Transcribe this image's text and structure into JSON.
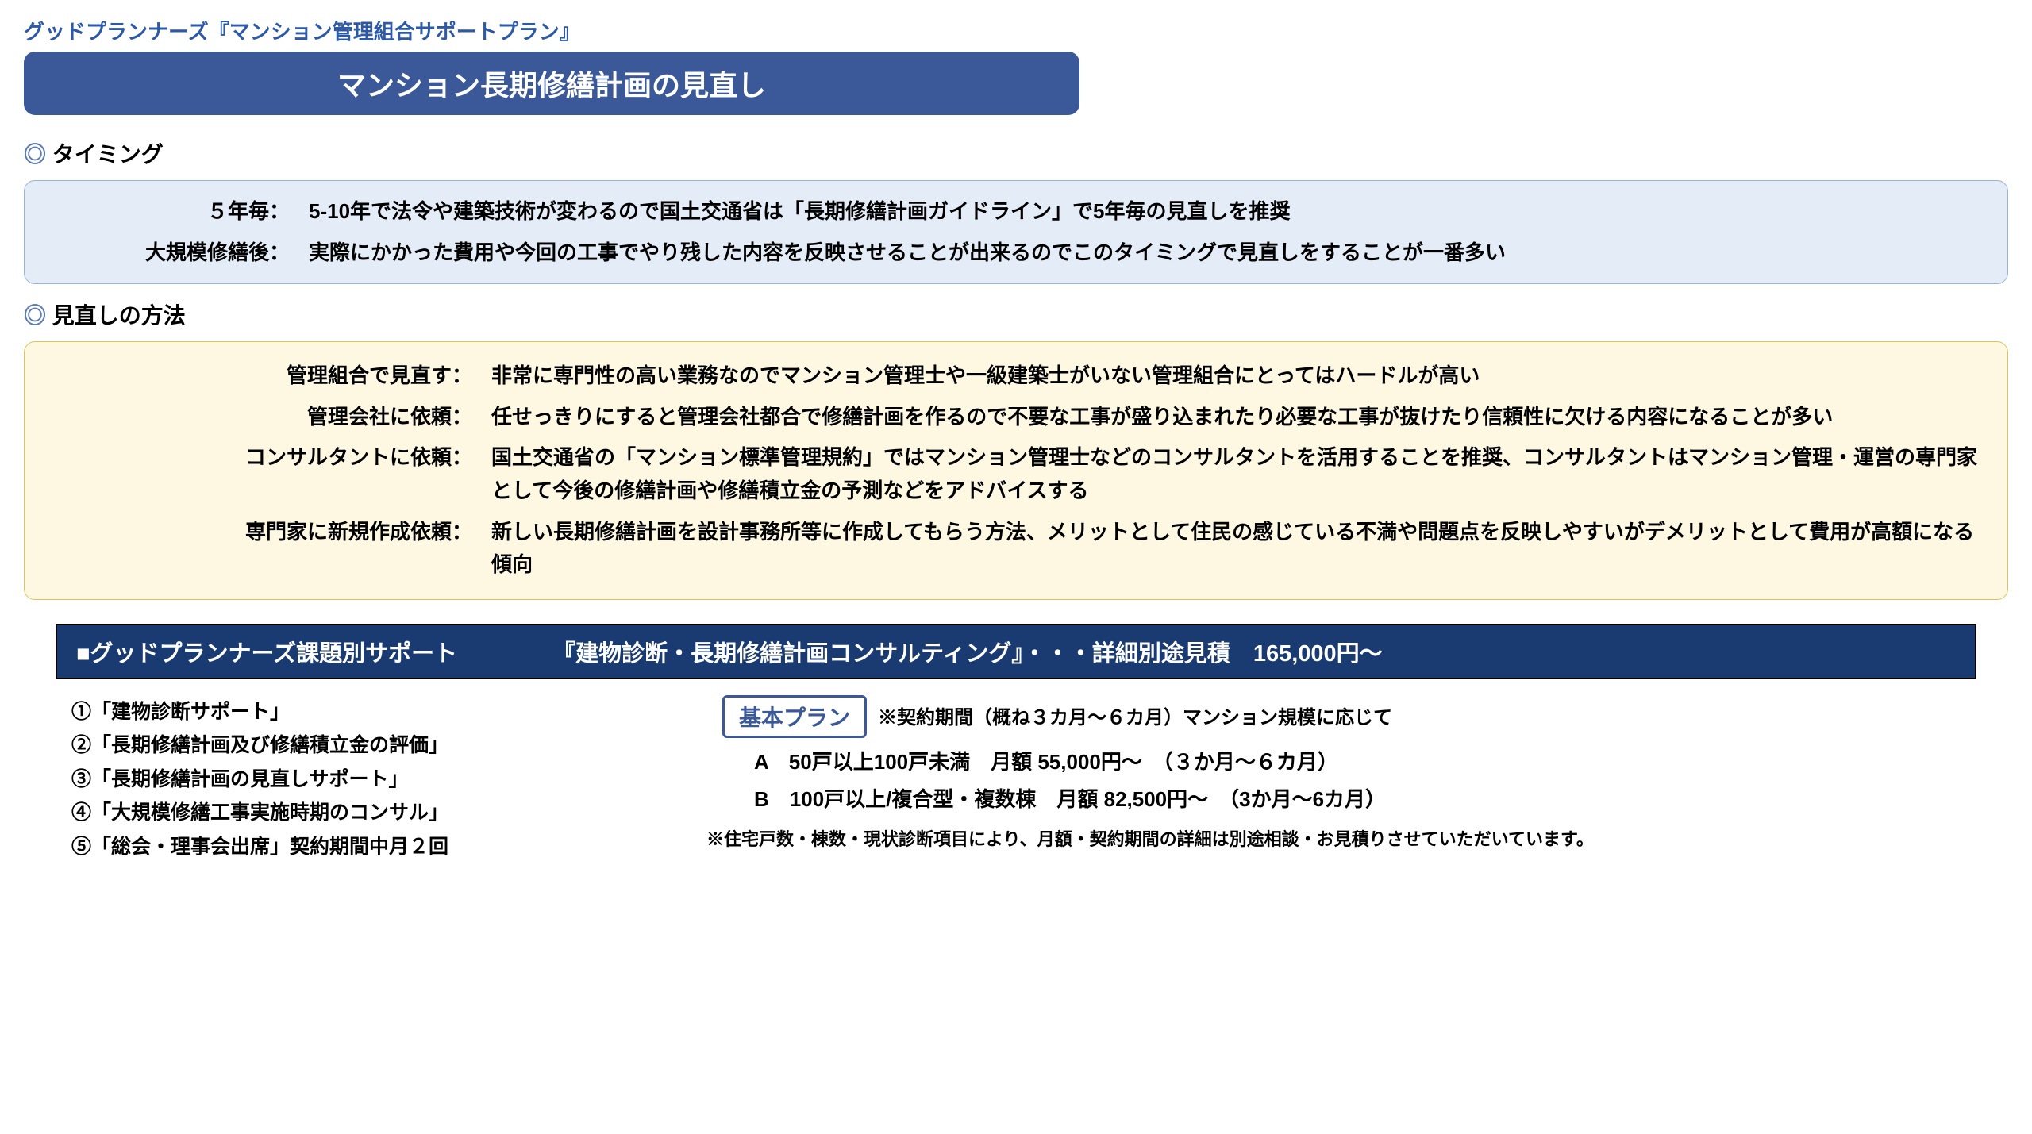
{
  "header": "グッドプランナーズ『マンション管理組合サポートプラン』",
  "title": "マンション長期修繕計画の見直し",
  "section1": {
    "heading": " タイミング",
    "rows": [
      {
        "label": "５年毎：",
        "value": "5-10年で法令や建築技術が変わるので国土交通省は「長期修繕計画ガイドライン」で5年毎の見直しを推奨"
      },
      {
        "label": "大規模修繕後：",
        "value": "実際にかかった費用や今回の工事でやり残した内容を反映させることが出来るのでこのタイミングで見直しをすることが一番多い"
      }
    ]
  },
  "section2": {
    "heading": " 見直しの方法",
    "rows": [
      {
        "label": "管理組合で見直す：",
        "value": "非常に専門性の高い業務なのでマンション管理士や一級建築士がいない管理組合にとってはハードルが高い"
      },
      {
        "label": "管理会社に依頼：",
        "value": "任せっきりにすると管理会社都合で修繕計画を作るので不要な工事が盛り込まれたり必要な工事が抜けたり信頼性に欠ける内容になることが多い"
      },
      {
        "label": "コンサルタントに依頼：",
        "value": "国土交通省の「マンション標準管理規約」ではマンション管理士などのコンサルタントを活用することを推奨、コンサルタントはマンション管理・運営の専門家として今後の修繕計画や修繕積立金の予測などをアドバイスする"
      },
      {
        "label": "専門家に新規作成依頼：",
        "value": "新しい長期修繕計画を設計事務所等に作成してもらう方法、メリットとして住民の感じている不満や問題点を反映しやすいがデメリットとして費用が高額になる傾向"
      }
    ]
  },
  "banner": {
    "part1": "■グッドプランナーズ課題別サポート",
    "part2": "『建物診断・長期修繕計画コンサルティング』・・・詳細別途見積　165,000円～"
  },
  "numbered": [
    "①「建物診断サポート」",
    "②「長期修繕計画及び修繕積立金の評価」",
    "③「長期修繕計画の見直しサポート」",
    "④「大規模修繕工事実施時期のコンサル」",
    "⑤「総会・理事会出席」契約期間中月２回"
  ],
  "plan": {
    "badge": "基本プラン",
    "note": "※契約期間（概ね３カ月～６カ月）マンション規模に応じて",
    "optA": "A　50戸以上100戸未満　月額 55,000円～　（３か月～６カ月）",
    "optB": "B　100戸以上/複合型・複数棟　月額 82,500円～　（3か月～6カ月）",
    "footnote": "※住宅戸数・棟数・現状診断項目により、月額・契約期間の詳細は別途相談・お見積りさせていただいています。"
  }
}
